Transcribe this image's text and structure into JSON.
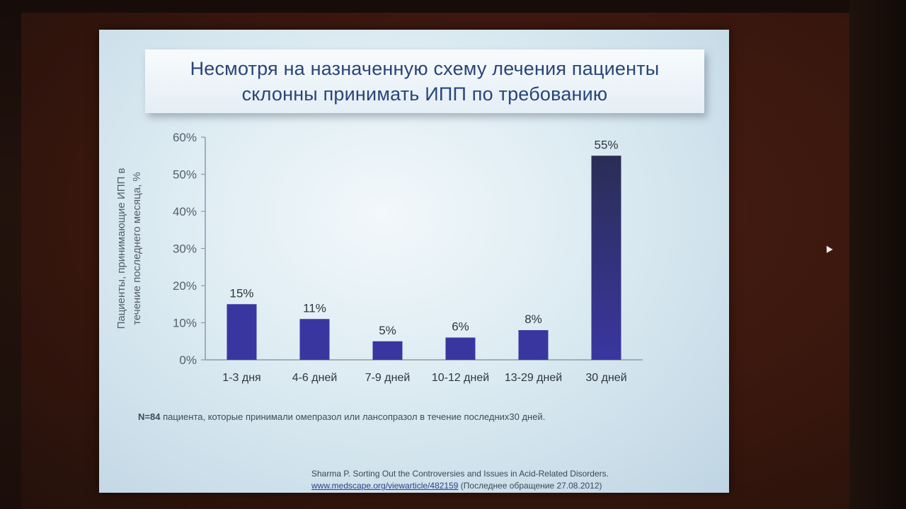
{
  "slide": {
    "title_line1": "Несмотря на назначенную схему лечения пациенты",
    "title_line2": "склонны принимать ИПП по требованию",
    "note_n": "N=84",
    "note_text": " пациента, которые принимали омепразол или лансопразол в течение последних30 дней.",
    "source_line1": "Sharma P. Sorting Out the Controversies and Issues in Acid-Related Disorders.",
    "source_link": "www.medscape.org/viewarticle/482159",
    "source_date": " (Последнее обращение 27.08.2012)"
  },
  "colors": {
    "bar": "#3a36a0",
    "bar_dark": "#2a2e55",
    "axis": "#8d99a8",
    "tick_text": "#555d6b",
    "label_text": "#2e3440"
  },
  "chart_data": {
    "type": "bar",
    "title": "Несмотря на назначенную схему лечения пациенты склонны принимать ИПП по требованию",
    "xlabel": "",
    "ylabel": "Пациенты, принимающие ИПП в течение последнего месяца, %",
    "ylim": [
      0,
      60
    ],
    "yticks": [
      0,
      10,
      20,
      30,
      40,
      50,
      60
    ],
    "ytick_suffix": "%",
    "categories": [
      "1-3 дня",
      "4-6 дней",
      "7-9 дней",
      "10-12 дней",
      "13-29 дней",
      "30 дней"
    ],
    "values": [
      15,
      11,
      5,
      6,
      8,
      55
    ],
    "data_labels": [
      "15%",
      "11%",
      "5%",
      "6%",
      "8%",
      "55%"
    ],
    "grid": false,
    "legend": "none"
  }
}
